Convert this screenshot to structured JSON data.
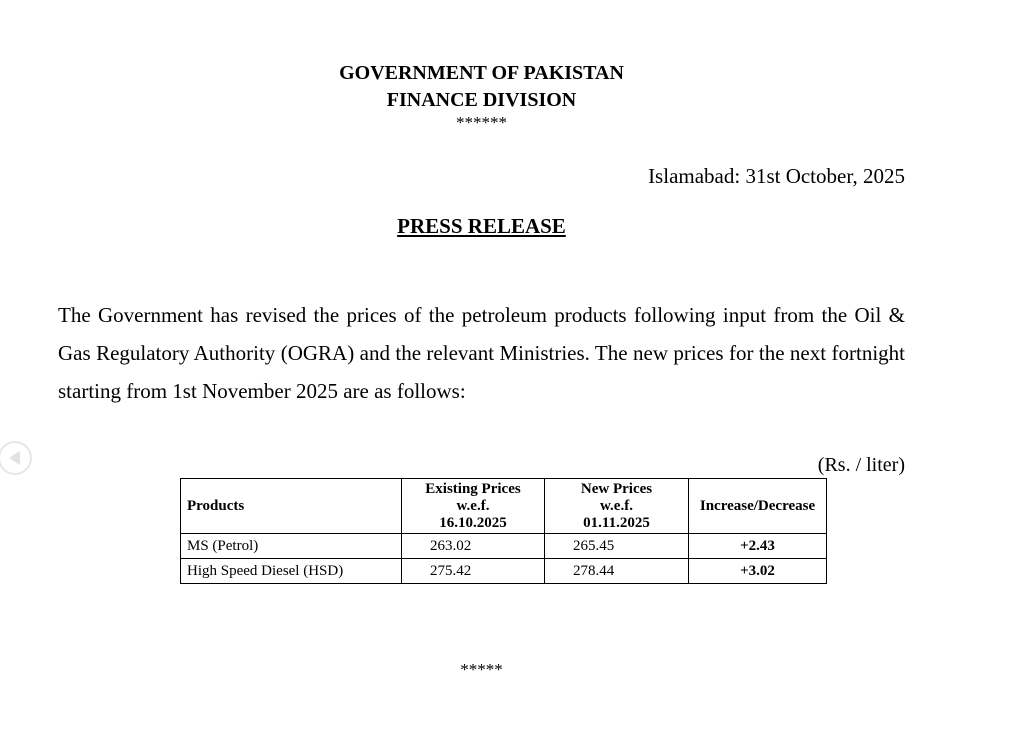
{
  "header": {
    "line1": "GOVERNMENT OF PAKISTAN",
    "line2": "FINANCE DIVISION",
    "separator": "******"
  },
  "date_line": "Islamabad: 31st October, 2025",
  "title": "PRESS RELEASE",
  "body": "The Government has revised the prices of the petroleum products following input from the Oil & Gas Regulatory Authority (OGRA) and the relevant Ministries. The new prices for the next fortnight starting from 1st November 2025 are as follows:",
  "unit": "(Rs. / liter)",
  "table": {
    "headers": {
      "products": "Products",
      "existing": [
        "Existing Prices",
        "w.e.f.",
        "16.10.2025"
      ],
      "new": [
        "New Prices",
        "w.e.f.",
        "01.11.2025"
      ],
      "change": "Increase/Decrease"
    },
    "rows": [
      {
        "product": "MS (Petrol)",
        "existing": "263.02",
        "new": "265.45",
        "change": "+2.43"
      },
      {
        "product": "High Speed Diesel (HSD)",
        "existing": "275.42",
        "new": "278.44",
        "change": "+3.02"
      }
    ]
  },
  "footer_separator": "*****",
  "nav": {
    "icon": "previous-page-icon"
  }
}
